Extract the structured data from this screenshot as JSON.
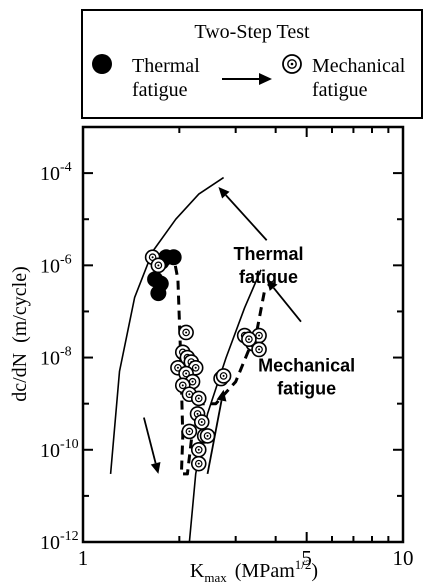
{
  "chart_data": {
    "type": "scatter",
    "x_scale": "log",
    "y_scale": "log",
    "xlim": [
      1,
      10
    ],
    "ylim": [
      1e-12,
      0.001
    ],
    "xlabel_main": "K",
    "xlabel_sub": "max",
    "xlabel_unit": "(MPam",
    "xlabel_sup": "1/2",
    "xlabel_close": ")",
    "ylabel": "dc/dN  (m/cycle)",
    "x_ticks": [
      {
        "value": 1,
        "label": "1"
      },
      {
        "value": 5,
        "label": "5"
      },
      {
        "value": 10,
        "label": "10"
      }
    ],
    "y_ticks": [
      {
        "value": 0.0001,
        "base": "10",
        "exp": "-4"
      },
      {
        "value": 1e-06,
        "base": "10",
        "exp": "-6"
      },
      {
        "value": 1e-08,
        "base": "10",
        "exp": "-8"
      },
      {
        "value": 1e-10,
        "base": "10",
        "exp": "-10"
      },
      {
        "value": 1e-12,
        "base": "10",
        "exp": "-12"
      }
    ],
    "legend": {
      "title": "Two-Step Test",
      "entry_thermal": [
        "Thermal",
        "fatigue"
      ],
      "entry_mechanical": [
        "Mechanical",
        "fatigue"
      ],
      "placement": "top"
    },
    "series": [
      {
        "name": "Thermal fatigue",
        "marker": "filled-circle",
        "points": [
          [
            1.68,
            5e-07
          ],
          [
            1.72,
            2.5e-07
          ],
          [
            1.76,
            1.2e-06
          ],
          [
            1.82,
            1.5e-06
          ],
          [
            1.92,
            1.5e-06
          ],
          [
            1.75,
            4e-07
          ]
        ]
      },
      {
        "name": "Mechanical fatigue",
        "marker": "dotted-circle",
        "points": [
          [
            1.65,
            1.5e-06
          ],
          [
            1.72,
            1e-06
          ],
          [
            2.1,
            3.5e-08
          ],
          [
            2.05,
            1.3e-08
          ],
          [
            1.98,
            6e-09
          ],
          [
            2.12,
            1e-08
          ],
          [
            2.18,
            8e-09
          ],
          [
            2.25,
            6e-09
          ],
          [
            2.1,
            4.5e-09
          ],
          [
            2.2,
            3e-09
          ],
          [
            2.05,
            2.5e-09
          ],
          [
            2.15,
            1.6e-09
          ],
          [
            2.3,
            1.3e-09
          ],
          [
            2.28,
            6e-10
          ],
          [
            2.35,
            4e-10
          ],
          [
            2.4,
            2e-10
          ],
          [
            2.15,
            2.5e-10
          ],
          [
            2.3,
            1e-10
          ],
          [
            2.3,
            5e-11
          ],
          [
            2.7,
            3.5e-09
          ],
          [
            2.75,
            4e-09
          ],
          [
            3.2,
            3e-08
          ],
          [
            3.4,
            2e-08
          ],
          [
            3.55,
            3e-08
          ],
          [
            3.55,
            1.5e-08
          ],
          [
            3.3,
            2.5e-08
          ],
          [
            2.45,
            2e-10
          ]
        ]
      }
    ],
    "curves": {
      "thermal_curve": [
        [
          1.22,
          3e-11
        ],
        [
          1.3,
          5e-09
        ],
        [
          1.45,
          2e-07
        ],
        [
          1.65,
          2e-06
        ],
        [
          1.95,
          1e-05
        ],
        [
          2.3,
          3.5e-05
        ],
        [
          2.75,
          8e-05
        ]
      ],
      "mechanical_curve": [
        [
          2.15,
          1e-12
        ],
        [
          2.25,
          3e-11
        ],
        [
          2.45,
          6e-10
        ],
        [
          2.8,
          1e-08
        ],
        [
          3.2,
          1.2e-07
        ],
        [
          3.6,
          8e-07
        ]
      ],
      "transition_dashed": [
        [
          1.7,
          8e-07
        ],
        [
          1.92,
          1.5e-06
        ],
        [
          1.98,
          5e-07
        ],
        [
          2.02,
          1e-08
        ],
        [
          2.05,
          2e-10
        ],
        [
          2.03,
          3e-11
        ],
        [
          2.12,
          3e-11
        ],
        [
          2.25,
          1e-09
        ],
        [
          2.6,
          1e-09
        ],
        [
          3.0,
          3e-09
        ],
        [
          3.5,
          4e-08
        ],
        [
          3.7,
          3e-07
        ]
      ]
    },
    "annotations": [
      {
        "lines": [
          "Thermal",
          "fatigue"
        ],
        "anchor": [
          3.8,
          1.3e-06
        ],
        "arrow_to": [
          2.65,
          5e-05
        ],
        "arrow_from": [
          3.75,
          3.5e-06
        ]
      },
      {
        "lines": [
          "Mechanical",
          "fatigue"
        ],
        "anchor": [
          5.0,
          5e-09
        ],
        "arrow_to": [
          3.75,
          5e-07
        ],
        "arrow_from": [
          4.8,
          6e-08
        ]
      }
    ],
    "trend_arrows": [
      {
        "from": [
          1.55,
          5e-10
        ],
        "to": [
          1.72,
          3e-11
        ]
      },
      {
        "from": [
          2.45,
          3e-11
        ],
        "to": [
          2.75,
          2e-09
        ]
      }
    ],
    "grid": false
  }
}
